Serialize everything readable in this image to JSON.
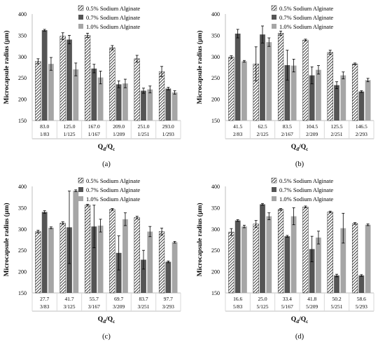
{
  "legend": [
    "0.5% Sodium Alginate",
    "0.7% Sodium Alginate",
    "1.0% Sodium Alginate"
  ],
  "colors": {
    "s05": "#000000",
    "s07": "#555555",
    "s10": "#a6a6a6",
    "errbar": "#000000"
  },
  "chart_data": [
    {
      "panel": "(a)",
      "type": "bar",
      "ylabel": "Microcapsule radius (µm)",
      "xlabel": "Q_d/Q_c",
      "ylim": [
        150,
        400
      ],
      "yticks": [
        150,
        200,
        250,
        300,
        350,
        400
      ],
      "categories": [
        "83.0",
        "125.0",
        "167.0",
        "209.0",
        "251.0",
        "293.0"
      ],
      "categories2": [
        "1/83",
        "1/125",
        "1/167",
        "1/209",
        "1/251",
        "1/293"
      ],
      "series": [
        {
          "name": "0.5% Sodium Alginate",
          "values": [
            289,
            348,
            350,
            321,
            295,
            265
          ],
          "errors": [
            6,
            8,
            5,
            5,
            8,
            12
          ]
        },
        {
          "name": "0.7% Sodium Alginate",
          "values": [
            362,
            340,
            272,
            235,
            220,
            225
          ],
          "errors": [
            2,
            10,
            10,
            8,
            6,
            3
          ]
        },
        {
          "name": "1.0% Sodium Alginate",
          "values": [
            283,
            270,
            251,
            237,
            223,
            216
          ],
          "errors": [
            15,
            15,
            15,
            10,
            8,
            4
          ]
        }
      ]
    },
    {
      "panel": "(b)",
      "type": "bar",
      "ylabel": "Microcapsule radius (µm)",
      "xlabel": "Q_d/Q_c",
      "ylim": [
        150,
        400
      ],
      "yticks": [
        150,
        200,
        250,
        300,
        350,
        400
      ],
      "categories": [
        "41.5",
        "62.5",
        "83.5",
        "104.5",
        "125.5",
        "146.5"
      ],
      "categories2": [
        "2/83",
        "2/125",
        "2/167",
        "2/209",
        "2/251",
        "2/293"
      ],
      "series": [
        {
          "name": "0.5% Sodium Alginate",
          "values": [
            299,
            283,
            355,
            339,
            310,
            283
          ],
          "errors": [
            3,
            40,
            5,
            2,
            5,
            2
          ]
        },
        {
          "name": "0.7% Sodium Alginate",
          "values": [
            354,
            352,
            280,
            256,
            233,
            218
          ],
          "errors": [
            10,
            20,
            35,
            20,
            8,
            2
          ]
        },
        {
          "name": "1.0% Sodium Alginate",
          "values": [
            289,
            334,
            279,
            269,
            256,
            245
          ],
          "errors": [
            2,
            10,
            15,
            10,
            8,
            4
          ]
        }
      ]
    },
    {
      "panel": "(c)",
      "type": "bar",
      "ylabel": "Microcapsule radius (µm)",
      "xlabel": "Q_d/Q_c",
      "ylim": [
        150,
        400
      ],
      "yticks": [
        150,
        200,
        250,
        300,
        350,
        400
      ],
      "categories": [
        "27.7",
        "41.7",
        "55.7",
        "69.7",
        "83.7",
        "97.7"
      ],
      "categories2": [
        "3/83",
        "3/125",
        "3/167",
        "3/209",
        "3/251",
        "3/293"
      ],
      "series": [
        {
          "name": "0.5% Sodium Alginate",
          "values": [
            294,
            314,
            356,
            346,
            327,
            294
          ],
          "errors": [
            3,
            3,
            2,
            2,
            3,
            8
          ]
        },
        {
          "name": "0.7% Sodium Alginate",
          "values": [
            340,
            304,
            306,
            244,
            228,
            223
          ],
          "errors": [
            3,
            85,
            50,
            40,
            22,
            2
          ]
        },
        {
          "name": "1.0% Sodium Alginate",
          "values": [
            303,
            390,
            308,
            323,
            294,
            269
          ],
          "errors": [
            2,
            2,
            15,
            15,
            12,
            2
          ]
        }
      ]
    },
    {
      "panel": "(d)",
      "type": "bar",
      "ylabel": "Microcapsule radius (µm)",
      "xlabel": "Q_d/Q_c",
      "ylim": [
        150,
        400
      ],
      "yticks": [
        150,
        200,
        250,
        300,
        350,
        400
      ],
      "categories": [
        "16.6",
        "25.0",
        "33.4",
        "41.8",
        "50.2",
        "58.6"
      ],
      "categories2": [
        "5/83",
        "5/125",
        "5/167",
        "5/209",
        "5/251",
        "5/293"
      ],
      "series": [
        {
          "name": "0.5% Sodium Alginate",
          "values": [
            293,
            312,
            346,
            352,
            340,
            313
          ],
          "errors": [
            8,
            8,
            2,
            2,
            2,
            2
          ]
        },
        {
          "name": "0.7% Sodium Alginate",
          "values": [
            320,
            358,
            283,
            253,
            191,
            191
          ],
          "errors": [
            2,
            2,
            2,
            30,
            3,
            2
          ]
        },
        {
          "name": "1.0% Sodium Alginate",
          "values": [
            306,
            330,
            330,
            280,
            302,
            310
          ],
          "errors": [
            3,
            8,
            20,
            15,
            35,
            2
          ]
        }
      ]
    }
  ]
}
